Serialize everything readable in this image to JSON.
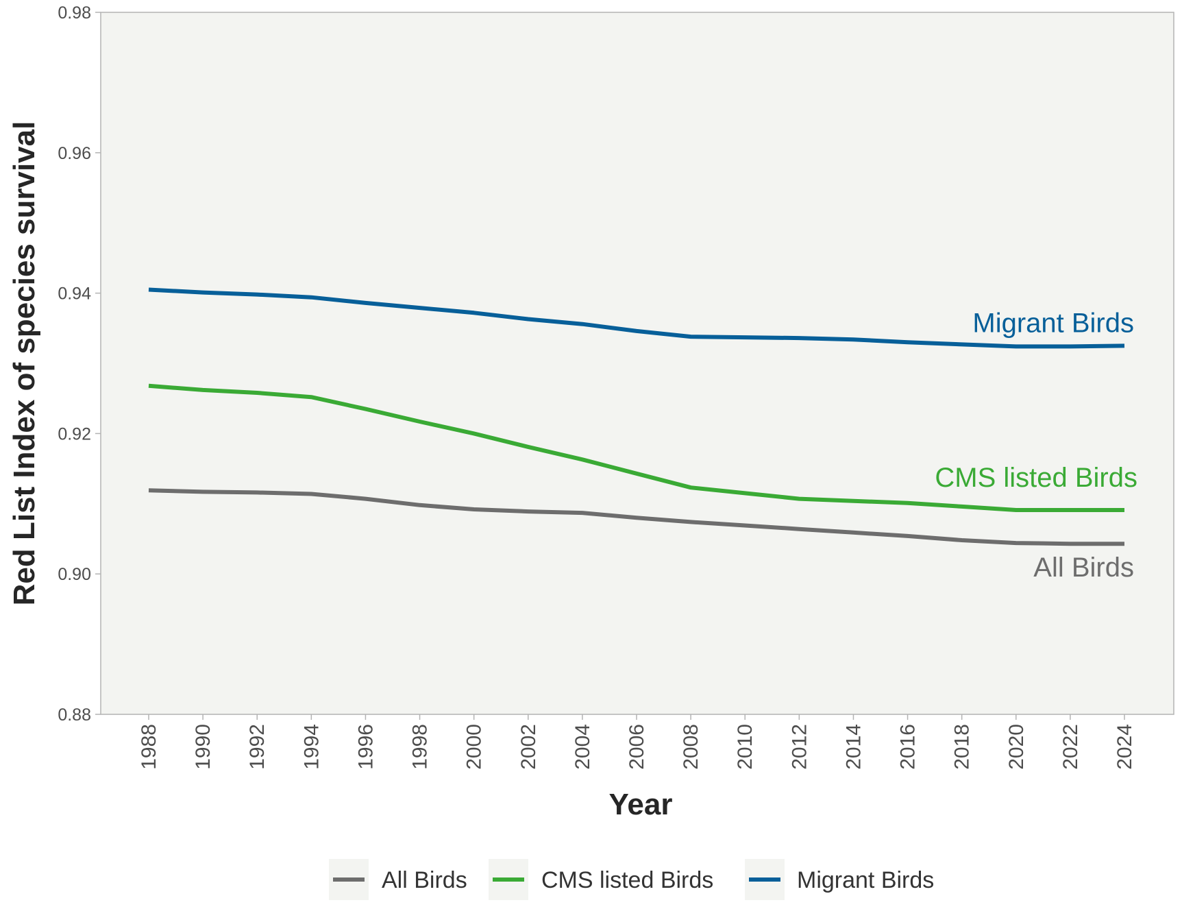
{
  "chart_data": {
    "type": "line",
    "title": "",
    "xlabel": "Year",
    "ylabel": "Red List Index of species survival",
    "ylim": [
      0.88,
      0.98
    ],
    "yticks": [
      "0.88",
      "0.90",
      "0.92",
      "0.94",
      "0.96",
      "0.98"
    ],
    "ytick_values": [
      0.88,
      0.9,
      0.92,
      0.94,
      0.96,
      0.98
    ],
    "x": [
      1988,
      1990,
      1992,
      1994,
      1996,
      1998,
      2000,
      2002,
      2004,
      2006,
      2008,
      2010,
      2012,
      2014,
      2016,
      2018,
      2020,
      2022,
      2024
    ],
    "xtick_labels": [
      "1988",
      "1990",
      "1992",
      "1994",
      "1996",
      "1998",
      "2000",
      "2002",
      "2004",
      "2006",
      "2008",
      "2010",
      "2012",
      "2014",
      "2016",
      "2018",
      "2020",
      "2022",
      "2024"
    ],
    "grid": false,
    "legend_position": "bottom",
    "series": [
      {
        "name": "All Birds",
        "color": "#6d6d6d",
        "label": "All Birds",
        "values": [
          0.9119,
          0.9117,
          0.9116,
          0.9114,
          0.9107,
          0.9098,
          0.9092,
          0.9089,
          0.9087,
          0.908,
          0.9074,
          0.9069,
          0.9064,
          0.9059,
          0.9054,
          0.9048,
          0.9044,
          0.9043,
          0.9043
        ]
      },
      {
        "name": "CMS listed Birds",
        "color": "#3aaa35",
        "label": "CMS listed Birds",
        "values": [
          0.9268,
          0.9262,
          0.9258,
          0.9252,
          0.9235,
          0.9217,
          0.92,
          0.9181,
          0.9163,
          0.9143,
          0.9123,
          0.9115,
          0.9107,
          0.9104,
          0.9101,
          0.9096,
          0.9091,
          0.9091,
          0.9091
        ]
      },
      {
        "name": "Migrant Birds",
        "color": "#075f99",
        "label": "Migrant Birds",
        "values": [
          0.9405,
          0.9401,
          0.9398,
          0.9394,
          0.9386,
          0.9379,
          0.9372,
          0.9363,
          0.9356,
          0.9346,
          0.9338,
          0.9337,
          0.9336,
          0.9334,
          0.933,
          0.9327,
          0.9324,
          0.9324,
          0.9325
        ]
      }
    ]
  },
  "legend": {
    "items": [
      {
        "label": "All Birds",
        "color": "#6d6d6d"
      },
      {
        "label": "CMS listed Birds",
        "color": "#3aaa35"
      },
      {
        "label": "Migrant Birds",
        "color": "#075f99"
      }
    ]
  },
  "colors": {
    "panel_background": "#f3f4f1",
    "axis": "#b3b3b3",
    "tick_text": "#4d4d4d",
    "title_text": "#262626",
    "legend_key_background": "#f3f4f1"
  }
}
